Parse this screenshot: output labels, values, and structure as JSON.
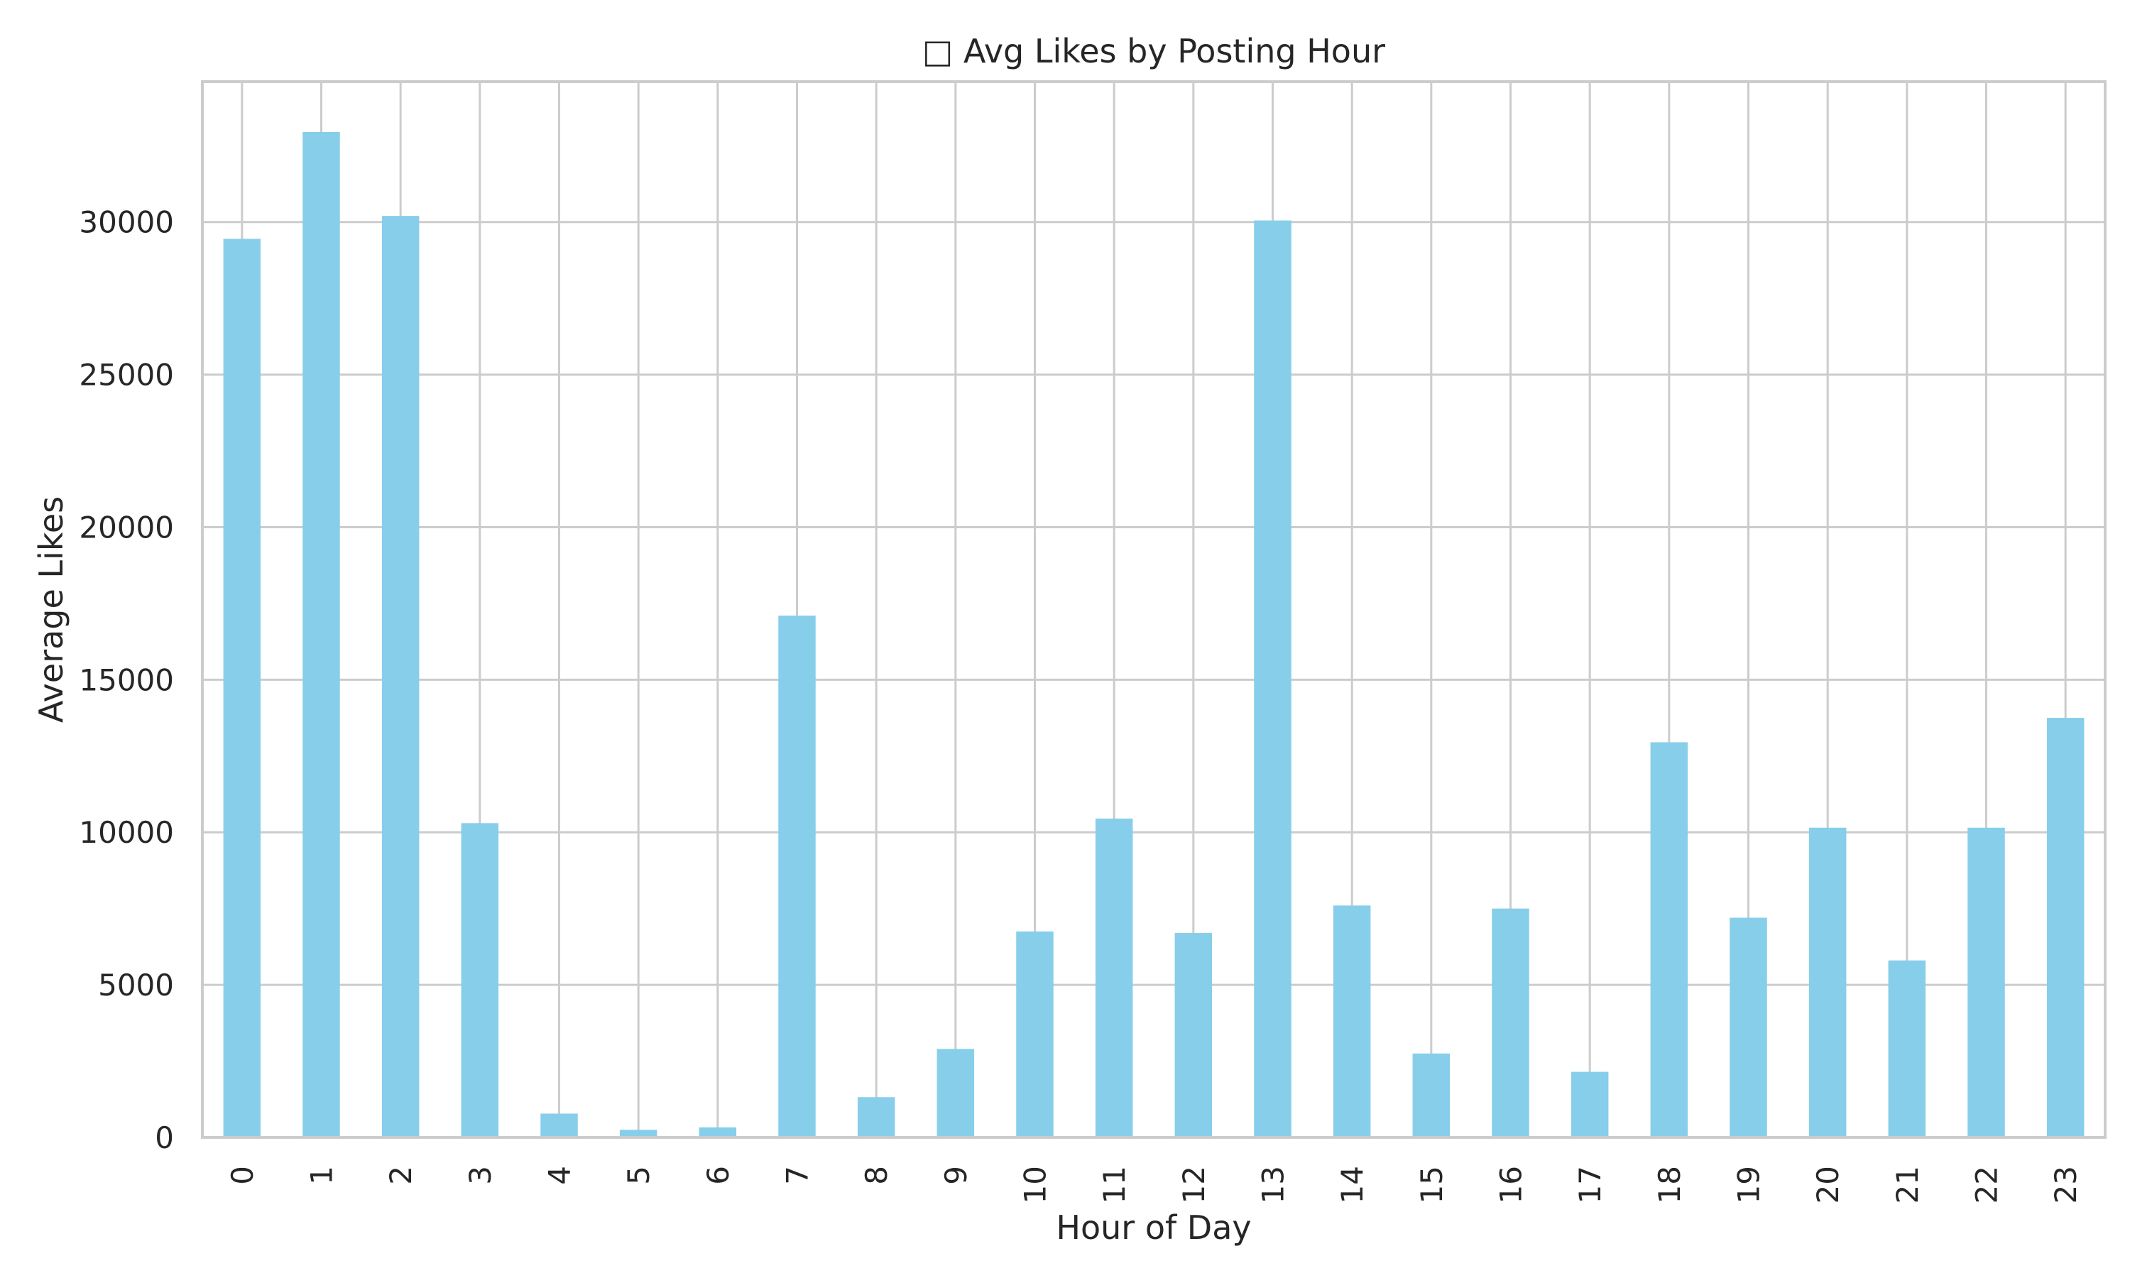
{
  "chart_data": {
    "type": "bar",
    "title": "□ Avg Likes by Posting Hour",
    "xlabel": "Hour of Day",
    "ylabel": "Average Likes",
    "categories": [
      "0",
      "1",
      "2",
      "3",
      "4",
      "5",
      "6",
      "7",
      "8",
      "9",
      "10",
      "11",
      "12",
      "13",
      "14",
      "15",
      "16",
      "17",
      "18",
      "19",
      "20",
      "21",
      "22",
      "23"
    ],
    "values": [
      29450,
      32950,
      30200,
      10300,
      780,
      250,
      330,
      17100,
      1320,
      2900,
      6750,
      10450,
      6700,
      30050,
      7600,
      2750,
      7500,
      2150,
      12950,
      7200,
      10150,
      5800,
      10150,
      13750
    ],
    "yticks": [
      0,
      5000,
      10000,
      15000,
      20000,
      25000,
      30000
    ],
    "ylim": [
      0,
      34600
    ],
    "bar_color": "#87ceeb",
    "grid": true,
    "grid_color": "#cccccc",
    "legend": false
  }
}
